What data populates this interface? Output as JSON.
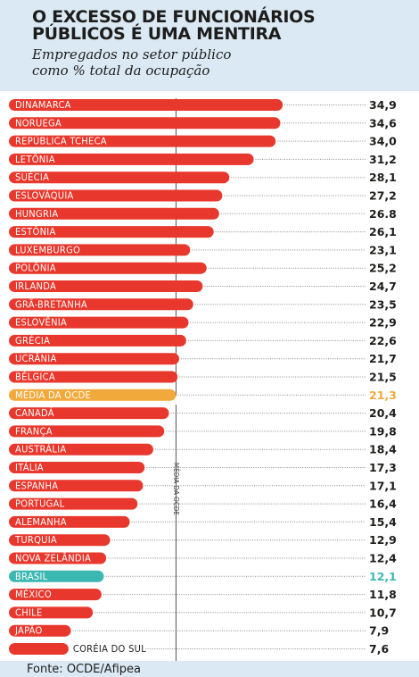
{
  "header": {
    "title": "O EXCESSO DE FUNCIONÁRIOS\nPÚBLICOS É UMA MENTIRA",
    "subtitle": "Empregados no setor público\ncomo % total da ocupação"
  },
  "footer": {
    "source": "Fonte: OCDE/Afipea"
  },
  "colors": {
    "bar": "#e8372c",
    "average": "#f2a93b",
    "brasil": "#3cb8b2",
    "text": "#1d1d1b",
    "header_bg": "#dbe9f4"
  },
  "chart_data": {
    "type": "bar",
    "orientation": "horizontal",
    "average_line_label": "MÉDIA DA OCDE",
    "categories": [
      "DINAMARCA",
      "NORUEGA",
      "REPÚBLICA TCHECA",
      "LETÔNIA",
      "SUÉCIA",
      "ESLOVÁQUIA",
      "HUNGRIA",
      "ESTÔNIA",
      "LUXEMBURGO",
      "POLÔNIA",
      "IRLANDA",
      "GRÃ-BRETANHA",
      "ESLOVÊNIA",
      "GRÉCIA",
      "UCRÂNIA",
      "BÉLGICA",
      "MÉDIA DA OCDE",
      "CANADÁ",
      "FRANÇA",
      "AUSTRÁLIA",
      "ITÁLIA",
      "ESPANHA",
      "PORTUGAL",
      "ALEMANHA",
      "TURQUIA",
      "NOVA ZELÂNDIA",
      "BRASIL",
      "MÉXICO",
      "CHILE",
      "JAPÃO",
      "CORÉIA DO SUL"
    ],
    "values": [
      34.9,
      34.6,
      34.0,
      31.2,
      28.1,
      27.2,
      26.8,
      26.1,
      23.1,
      25.2,
      24.7,
      23.5,
      22.9,
      22.6,
      21.7,
      21.5,
      21.3,
      20.4,
      19.8,
      18.4,
      17.3,
      17.1,
      16.4,
      15.4,
      12.9,
      12.4,
      12.1,
      11.8,
      10.7,
      7.9,
      7.6
    ],
    "value_labels": [
      "34,9",
      "34,6",
      "34,0",
      "31,2",
      "28,1",
      "27,2",
      "26.8",
      "26,1",
      "23,1",
      "25,2",
      "24,7",
      "23,5",
      "22,9",
      "22,6",
      "21,7",
      "21,5",
      "21,3",
      "20,4",
      "19,8",
      "18,4",
      "17,3",
      "17,1",
      "16,4",
      "15,4",
      "12,9",
      "12,4",
      "12,1",
      "11,8",
      "10,7",
      "7,9",
      "7,6"
    ],
    "highlight": {
      "MÉDIA DA OCDE": "average",
      "BRASIL": "brasil"
    },
    "xlim": [
      0,
      35
    ],
    "grid": false,
    "legend": "none"
  }
}
